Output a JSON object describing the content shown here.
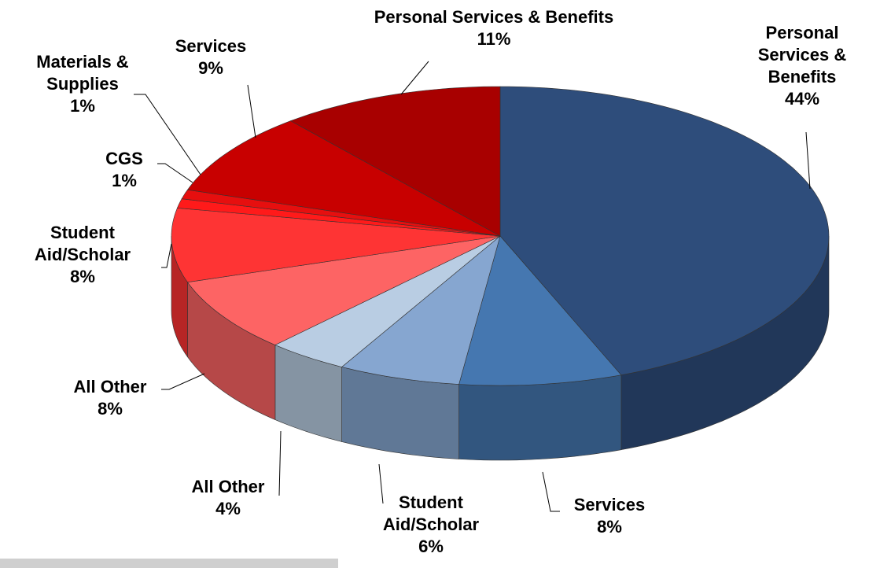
{
  "chart_data": {
    "type": "pie",
    "categories": [
      "Personal Services & Benefits",
      "Services",
      "Student Aid/Scholar",
      "All Other",
      "All Other",
      "Student Aid/Scholar",
      "CGS",
      "Materials & Supplies",
      "Services",
      "Personal Services & Benefits"
    ],
    "values": [
      44,
      8,
      6,
      4,
      8,
      8,
      1,
      1,
      9,
      11
    ],
    "value_labels": [
      "44%",
      "8%",
      "6%",
      "4%",
      "8%",
      "8%",
      "1%",
      "1%",
      "9%",
      "11%"
    ],
    "colors": [
      "#2e4d7b",
      "#4577b0",
      "#86a6d0",
      "#b9cde3",
      "#fd6464",
      "#fe3434",
      "#ff1a1a",
      "#e60f0f",
      "#c80000",
      "#a80000"
    ]
  }
}
